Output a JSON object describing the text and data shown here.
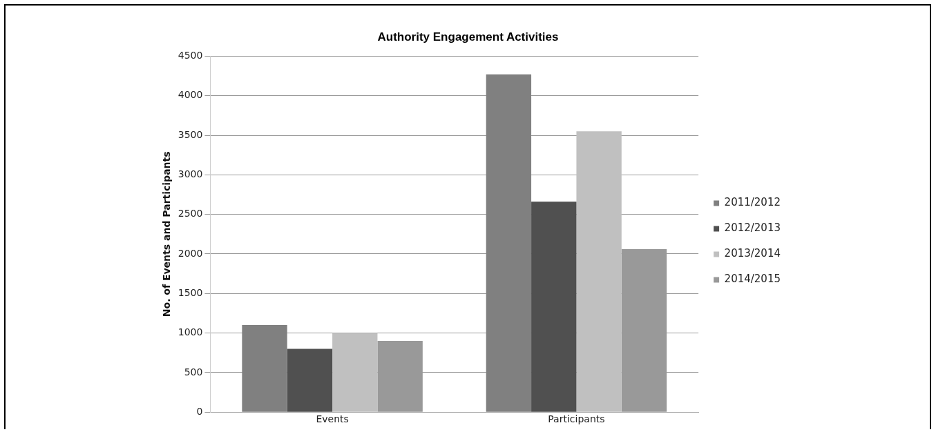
{
  "chart_data": {
    "type": "bar",
    "title": "Authority Engagement Activities",
    "ylabel": "No. of Events and Participants",
    "categories": [
      "Events",
      "Participants"
    ],
    "series": [
      {
        "name": "2011/2012",
        "color": "#808080",
        "values": [
          1100,
          4270
        ]
      },
      {
        "name": "2012/2013",
        "color": "#505050",
        "values": [
          800,
          2660
        ]
      },
      {
        "name": "2013/2014",
        "color": "#c0c0c0",
        "values": [
          1000,
          3550
        ]
      },
      {
        "name": "2014/2015",
        "color": "#999999",
        "values": [
          900,
          2060
        ]
      }
    ],
    "ylim": [
      0,
      4500
    ],
    "yticks": [
      0,
      500,
      1000,
      1500,
      2000,
      2500,
      3000,
      3500,
      4000,
      4500
    ],
    "grid": "y",
    "legend": "right"
  }
}
